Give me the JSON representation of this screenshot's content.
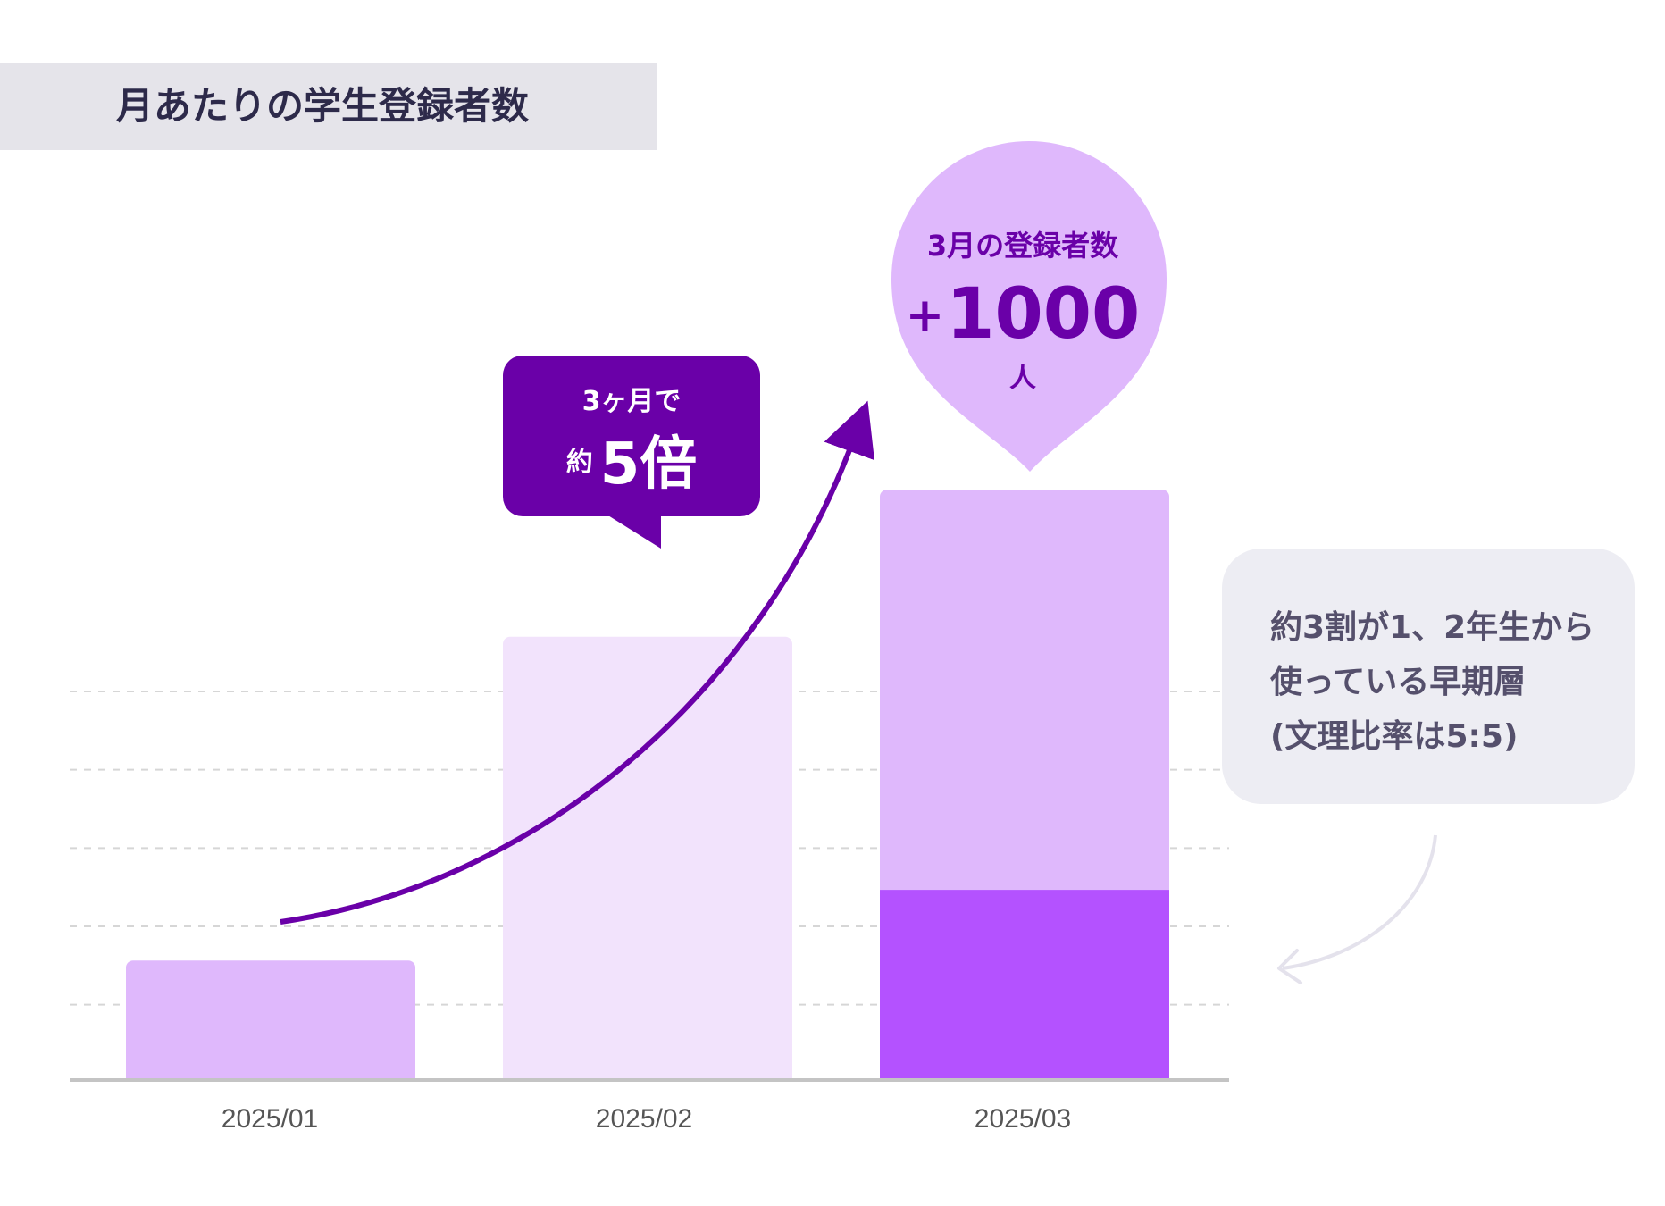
{
  "title": "月あたりの学生登録者数",
  "chart_data": {
    "type": "bar",
    "title": "月あたりの学生登録者数",
    "categories": [
      "2025/01",
      "2025/02",
      "2025/03"
    ],
    "values": [
      200,
      750,
      1000
    ],
    "series": [
      {
        "values": [
          200,
          750,
          680
        ]
      },
      {
        "values": [
          0,
          0,
          320
        ]
      }
    ],
    "ylim": [
      0,
      1100
    ],
    "grid": true,
    "stacked": true,
    "colors": {
      "jan": "#dfb8fc",
      "feb": "#f2e3fc",
      "mar_top": "#dfb8fc",
      "mar_bottom": "#b452ff",
      "arrow": "#6a00a8",
      "grid": "#d6d6d6",
      "axis": "#c4c4c4"
    }
  },
  "callout": {
    "line1": "3ヶ月で",
    "prefix": "約",
    "big": "5倍"
  },
  "pin": {
    "title": "3月の登録者数",
    "plus": "+",
    "value": "1000",
    "unit": "人"
  },
  "note": {
    "lines": [
      "約3割が1、2年生から",
      "使っている早期層",
      "(文理比率は5:5)"
    ]
  }
}
